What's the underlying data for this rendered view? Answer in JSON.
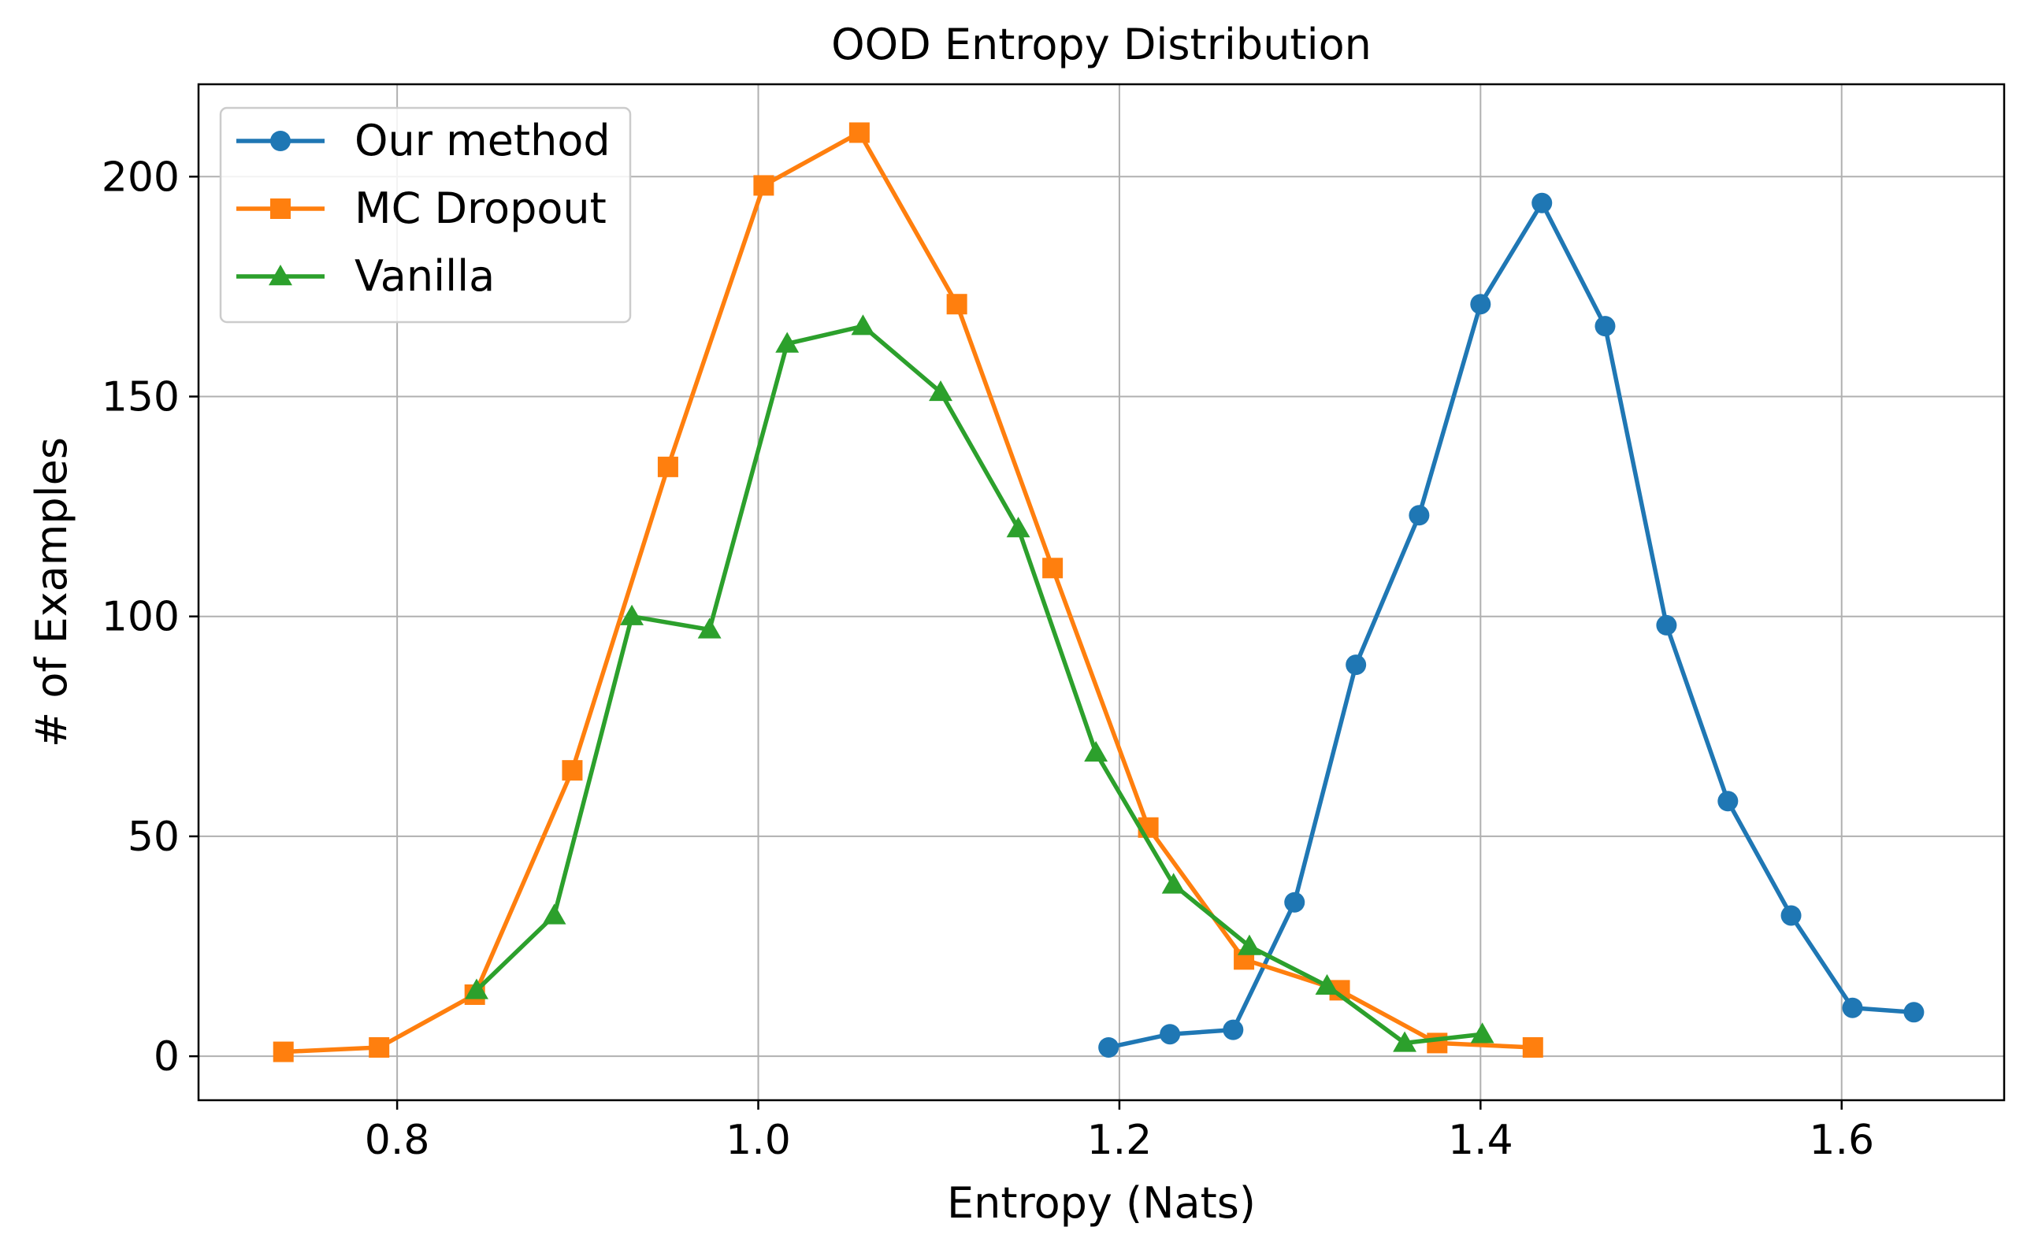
{
  "chart_data": {
    "type": "line",
    "title": "OOD Entropy Distribution",
    "xlabel": "Entropy (Nats)",
    "ylabel": "# of Examples",
    "xlim": [
      0.69,
      1.69
    ],
    "ylim": [
      -10,
      221
    ],
    "xticks": [
      0.8,
      1.0,
      1.2,
      1.4,
      1.6
    ],
    "xtick_labels": [
      "0.8",
      "1.0",
      "1.2",
      "1.4",
      "1.6"
    ],
    "yticks": [
      0,
      50,
      100,
      150,
      200
    ],
    "ytick_labels": [
      "0",
      "50",
      "100",
      "150",
      "200"
    ],
    "grid": true,
    "legend_position": "upper-left",
    "series": [
      {
        "name": "Our method",
        "color": "#1f77b4",
        "marker": "circle",
        "x": [
          1.194,
          1.228,
          1.263,
          1.297,
          1.331,
          1.366,
          1.4,
          1.434,
          1.469,
          1.503,
          1.537,
          1.572,
          1.606,
          1.64
        ],
        "y": [
          2,
          5,
          6,
          35,
          89,
          123,
          171,
          194,
          166,
          98,
          58,
          32,
          11,
          10
        ]
      },
      {
        "name": "MC Dropout",
        "color": "#ff7f0e",
        "marker": "square",
        "x": [
          0.737,
          0.79,
          0.843,
          0.897,
          0.95,
          1.003,
          1.056,
          1.11,
          1.163,
          1.216,
          1.269,
          1.322,
          1.376,
          1.429
        ],
        "y": [
          1,
          2,
          14,
          65,
          134,
          198,
          210,
          171,
          111,
          52,
          22,
          15,
          3,
          2
        ]
      },
      {
        "name": "Vanilla",
        "color": "#2ca02c",
        "marker": "triangle",
        "x": [
          0.844,
          0.887,
          0.93,
          0.973,
          1.016,
          1.058,
          1.101,
          1.144,
          1.187,
          1.23,
          1.272,
          1.315,
          1.358,
          1.401
        ],
        "y": [
          15,
          32,
          100,
          97,
          162,
          166,
          151,
          120,
          69,
          39,
          25,
          16,
          3,
          5
        ]
      }
    ]
  }
}
